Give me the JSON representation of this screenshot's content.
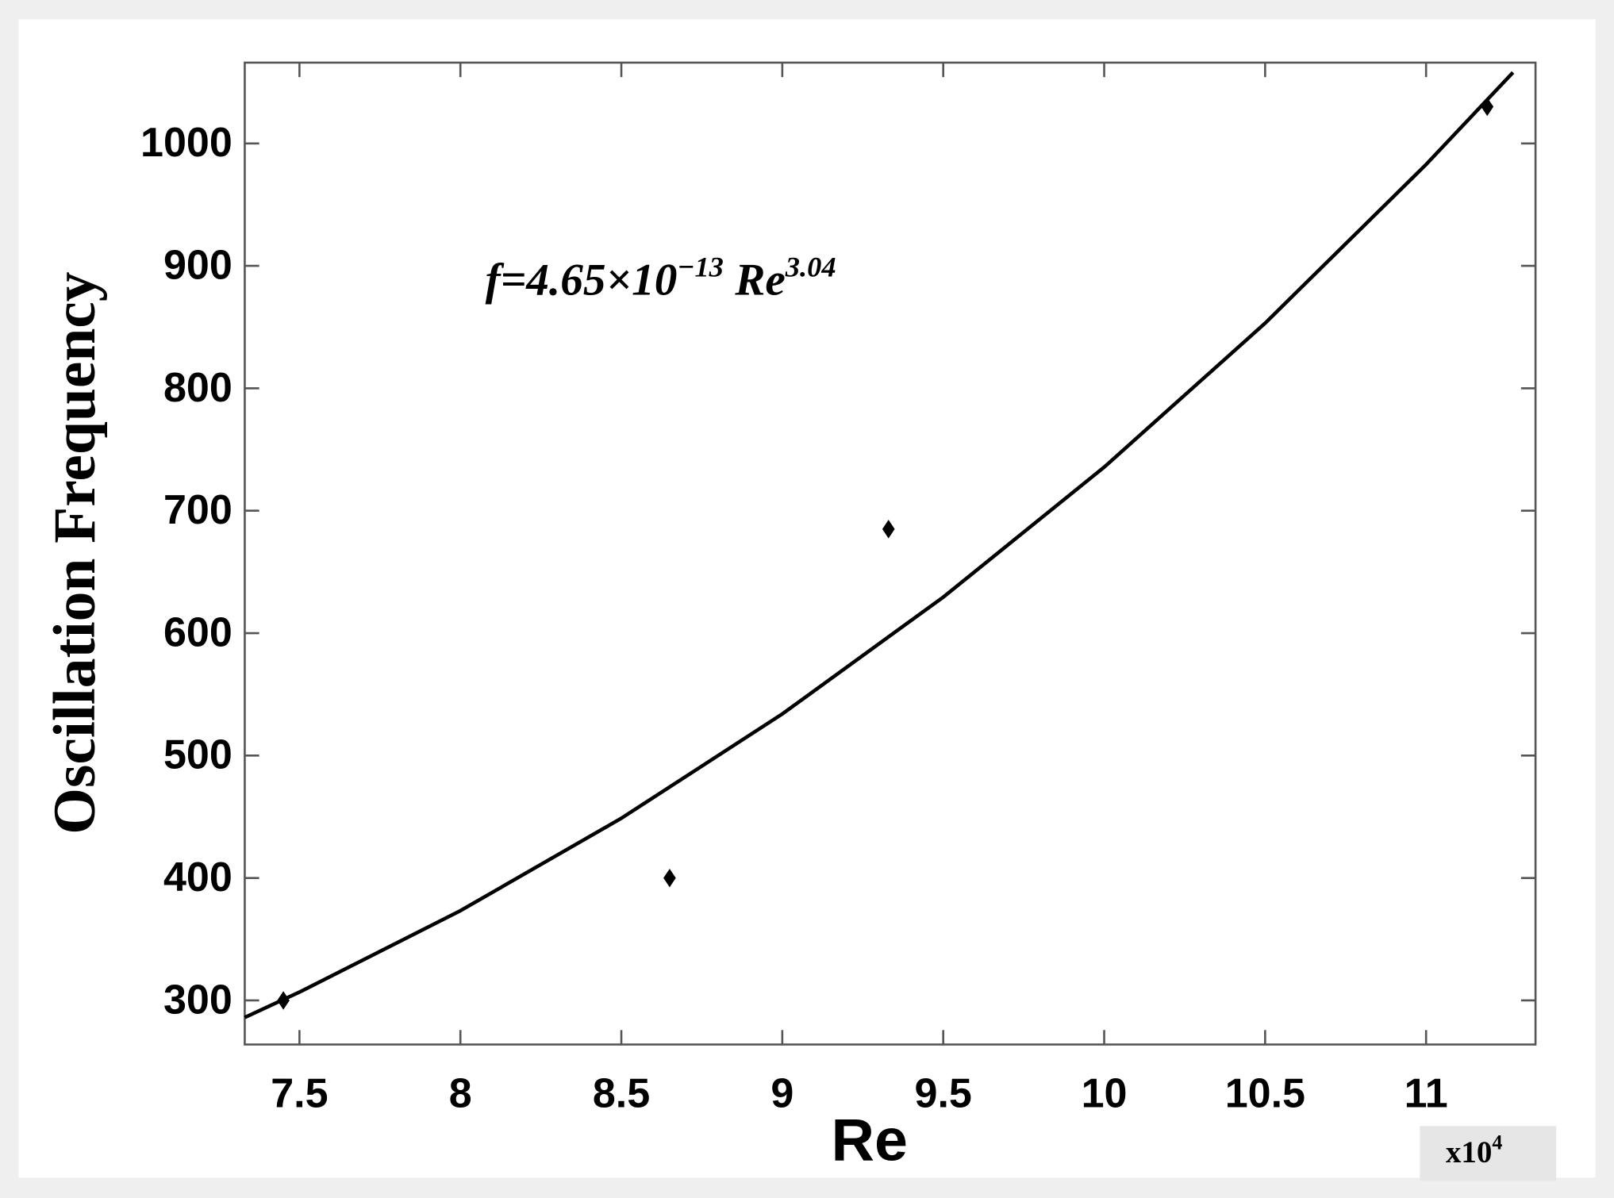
{
  "chart_data": {
    "type": "scatter",
    "x_label": "Re",
    "y_label": "Oscillation Frequency",
    "annotation": [
      "f=4.65×10",
      "−13",
      " Re",
      "3.04"
    ],
    "x_multiplier": [
      "x10",
      "4"
    ],
    "xlim": [
      7.33,
      11.34
    ],
    "ylim": [
      264,
      1066
    ],
    "xticks": [
      7.5,
      8,
      8.5,
      9,
      9.5,
      10,
      10.5,
      11
    ],
    "yticks": [
      300,
      400,
      500,
      600,
      700,
      800,
      900,
      1000
    ],
    "grid": false,
    "series": [
      {
        "type": "scatter",
        "marker": "diamond",
        "color": "#000000",
        "x": [
          7.45,
          8.65,
          9.33,
          11.19
        ],
        "values": [
          300,
          400,
          685,
          1030
        ]
      },
      {
        "type": "line",
        "color": "#000000",
        "x": [
          7.33,
          7.5,
          8,
          8.5,
          9,
          9.5,
          10,
          10.5,
          11,
          11.27
        ],
        "values": [
          286.1,
          306.8,
          373.3,
          448.8,
          534.0,
          629.4,
          735.6,
          853.2,
          982.8,
          1058.0
        ]
      }
    ]
  }
}
